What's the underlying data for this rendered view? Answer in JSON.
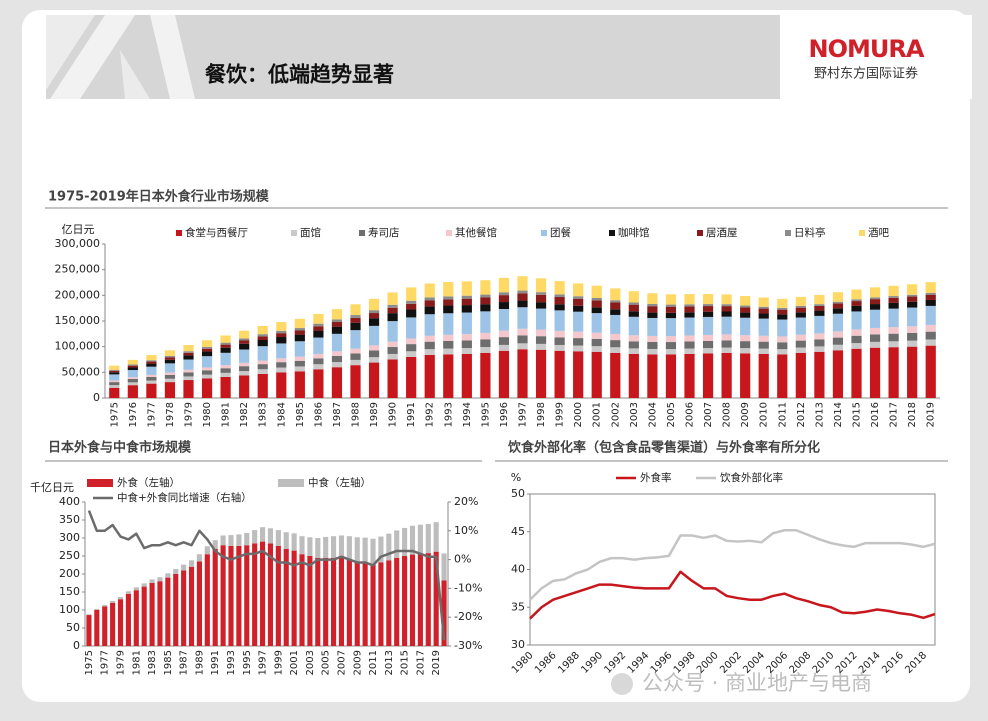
{
  "header": {
    "title": "餐饮：低端趋势显著",
    "logo": "NOMURA",
    "logo_sub": "野村东方国际证券"
  },
  "watermark": "公众号 · 商业地产与电商",
  "chart_data": [
    {
      "type": "bar",
      "stacked": true,
      "title": "1975-2019年日本外食行业市场规模",
      "y_label": "亿日元",
      "categories": [
        "1975",
        "1976",
        "1977",
        "1978",
        "1979",
        "1980",
        "1981",
        "1982",
        "1983",
        "1984",
        "1985",
        "1986",
        "1987",
        "1988",
        "1989",
        "1990",
        "1991",
        "1992",
        "1993",
        "1994",
        "1995",
        "1996",
        "1997",
        "1998",
        "1999",
        "2000",
        "2001",
        "2002",
        "2003",
        "2004",
        "2005",
        "2006",
        "2007",
        "2008",
        "2009",
        "2010",
        "2011",
        "2012",
        "2013",
        "2014",
        "2015",
        "2016",
        "2017",
        "2018",
        "2019"
      ],
      "ylim": [
        0,
        300000
      ],
      "yticks": [
        0,
        {
          "value": 50000,
          "label": "50,000"
        },
        {
          "value": 100000,
          "label": "100,000"
        },
        {
          "value": 150000,
          "label": "150,000"
        },
        {
          "value": 200000,
          "label": "200,000"
        },
        {
          "value": 250000,
          "label": "250,000"
        },
        {
          "value": 300000,
          "label": "300,000"
        }
      ],
      "series": [
        {
          "name": "食堂与西餐厅",
          "color": "#c8161d",
          "values": [
            20000,
            25000,
            28000,
            31000,
            35000,
            38000,
            41000,
            44000,
            47000,
            50000,
            52000,
            56000,
            60000,
            64000,
            69000,
            75000,
            80000,
            84000,
            85000,
            86000,
            88000,
            92000,
            95000,
            94000,
            92000,
            91000,
            90000,
            88000,
            86000,
            85000,
            85000,
            86000,
            87000,
            88000,
            87000,
            86000,
            85000,
            88000,
            90000,
            93000,
            96000,
            98000,
            99000,
            100000,
            102000
          ]
        },
        {
          "name": "面馆",
          "color": "#c9c9c9",
          "values": [
            5000,
            5500,
            6000,
            6500,
            7000,
            7500,
            8000,
            8500,
            9000,
            9300,
            9500,
            9800,
            10000,
            10200,
            10500,
            10800,
            11000,
            11200,
            11300,
            11300,
            11300,
            11400,
            11500,
            11400,
            11300,
            11200,
            11000,
            10800,
            10600,
            10500,
            10400,
            10400,
            10300,
            10300,
            10200,
            10200,
            10100,
            10300,
            10500,
            10700,
            11000,
            11300,
            11500,
            11700,
            12000
          ]
        },
        {
          "name": "寿司店",
          "color": "#6d6d6d",
          "values": [
            6000,
            6500,
            7000,
            7500,
            8000,
            8500,
            9000,
            9500,
            10000,
            10500,
            11000,
            11500,
            12000,
            12500,
            13000,
            13500,
            14000,
            14500,
            14800,
            15000,
            15000,
            15200,
            15300,
            15000,
            14800,
            14500,
            14200,
            14000,
            13800,
            13700,
            13600,
            13700,
            13800,
            13800,
            13600,
            13500,
            13400,
            13500,
            13700,
            14000,
            14300,
            14600,
            14800,
            15000,
            15200
          ]
        },
        {
          "name": "其他餐馆",
          "color": "#f4c7cc",
          "values": [
            3000,
            3500,
            4000,
            4500,
            5000,
            5500,
            6000,
            6500,
            7000,
            7500,
            8000,
            8500,
            9000,
            9500,
            10000,
            10500,
            11000,
            11500,
            12000,
            12200,
            12500,
            12800,
            13000,
            12800,
            12600,
            12400,
            12200,
            12000,
            11800,
            11700,
            11600,
            11700,
            11800,
            11800,
            11600,
            11500,
            11400,
            11500,
            11700,
            12000,
            12300,
            12600,
            12800,
            13000,
            13200
          ]
        },
        {
          "name": "团餐",
          "color": "#9dc3e6",
          "values": [
            12000,
            14000,
            16000,
            18000,
            20000,
            22000,
            24000,
            26000,
            28000,
            29000,
            30000,
            32000,
            34000,
            36000,
            38000,
            40000,
            41000,
            42000,
            42000,
            42000,
            42000,
            42000,
            42000,
            41000,
            40000,
            39000,
            38000,
            37000,
            36000,
            35000,
            35000,
            35000,
            35000,
            34500,
            34000,
            33500,
            33000,
            33500,
            34000,
            34500,
            35000,
            35500,
            36000,
            36500,
            37000
          ]
        },
        {
          "name": "咖啡馆",
          "color": "#111111",
          "values": [
            4000,
            5000,
            6000,
            7000,
            8000,
            9000,
            10000,
            11000,
            12000,
            12500,
            13000,
            13500,
            14000,
            14500,
            15000,
            15500,
            15500,
            15300,
            15000,
            14500,
            14000,
            13500,
            13000,
            12500,
            12000,
            11500,
            11200,
            11000,
            10800,
            10500,
            10300,
            10200,
            10200,
            10100,
            10000,
            10000,
            10000,
            10200,
            10400,
            10600,
            10800,
            11000,
            11200,
            11400,
            11600
          ]
        },
        {
          "name": "居酒屋",
          "color": "#8b1a1a",
          "values": [
            3000,
            3500,
            4000,
            4500,
            5000,
            5500,
            6000,
            6500,
            7000,
            7500,
            8000,
            8500,
            9000,
            9500,
            10000,
            10500,
            11000,
            11500,
            12000,
            12500,
            13000,
            13500,
            14000,
            14200,
            14000,
            13800,
            13500,
            13200,
            12800,
            12500,
            12000,
            11500,
            11000,
            10500,
            10000,
            9500,
            9200,
            9000,
            9000,
            9200,
            9400,
            9600,
            9800,
            10000,
            10200
          ]
        },
        {
          "name": "日料亭",
          "color": "#8c8c8c",
          "values": [
            2000,
            2300,
            2600,
            2900,
            3200,
            3500,
            3800,
            4100,
            4400,
            4600,
            4800,
            5000,
            5200,
            5400,
            5600,
            5800,
            6000,
            6000,
            5900,
            5800,
            5700,
            5600,
            5500,
            5300,
            5100,
            4900,
            4700,
            4500,
            4300,
            4200,
            4100,
            4000,
            3900,
            3800,
            3700,
            3600,
            3500,
            3500,
            3500,
            3500,
            3500,
            3500,
            3500,
            3500,
            3500
          ]
        },
        {
          "name": "酒吧",
          "color": "#ffd966",
          "values": [
            8000,
            9000,
            10000,
            11000,
            12000,
            13000,
            14000,
            15000,
            16000,
            17000,
            18000,
            19000,
            20000,
            21000,
            22000,
            24000,
            26000,
            27000,
            28000,
            28000,
            28000,
            28000,
            28000,
            27000,
            26000,
            25000,
            24000,
            23000,
            22000,
            21000,
            20000,
            20000,
            19500,
            19000,
            18500,
            18000,
            17500,
            17500,
            18000,
            18500,
            19000,
            19500,
            20000,
            20500,
            21000
          ]
        }
      ]
    },
    {
      "type": "bar",
      "stacked": true,
      "title": "日本外食与中食市场规模",
      "y_label": "千亿日元",
      "categories": [
        "1975",
        null,
        "1977",
        null,
        "1979",
        null,
        "1981",
        null,
        "1983",
        null,
        "1985",
        null,
        "1987",
        null,
        "1989",
        null,
        "1991",
        null,
        "1993",
        null,
        "1995",
        null,
        "1997",
        null,
        "1999",
        null,
        "2001",
        null,
        "2003",
        null,
        "2005",
        null,
        "2007",
        null,
        "2009",
        null,
        "2011",
        null,
        "2013",
        null,
        "2015",
        null,
        "2017",
        null,
        "2019",
        null
      ],
      "ylim": [
        0,
        400
      ],
      "yticks": [
        0,
        50,
        100,
        150,
        200,
        250,
        300,
        350,
        400
      ],
      "y2lim": [
        -30,
        20
      ],
      "y2ticks": [
        {
          "value": -30,
          "label": "-30%"
        },
        {
          "value": -20,
          "label": "-20%"
        },
        {
          "value": -10,
          "label": "-10%"
        },
        {
          "value": 0,
          "label": "0%"
        },
        {
          "value": 10,
          "label": "10%"
        },
        {
          "value": 20,
          "label": "20%"
        }
      ],
      "series": [
        {
          "name": "外食（左轴）",
          "color": "#d0202a",
          "values": [
            86,
            100,
            110,
            120,
            130,
            145,
            155,
            165,
            175,
            180,
            190,
            200,
            210,
            220,
            235,
            255,
            270,
            280,
            278,
            278,
            280,
            285,
            290,
            285,
            278,
            270,
            265,
            255,
            250,
            245,
            245,
            245,
            245,
            240,
            235,
            233,
            228,
            232,
            238,
            245,
            250,
            254,
            257,
            258,
            262,
            182
          ]
        },
        {
          "name": "中食（左轴）",
          "color": "#bdbdbd",
          "values": [
            2,
            3,
            4,
            5,
            6,
            7,
            8,
            9,
            10,
            11,
            12,
            14,
            16,
            18,
            20,
            22,
            24,
            27,
            30,
            32,
            34,
            37,
            40,
            42,
            44,
            46,
            48,
            50,
            52,
            55,
            58,
            60,
            62,
            65,
            67,
            68,
            70,
            72,
            74,
            76,
            78,
            80,
            80,
            81,
            82,
            75
          ]
        },
        {
          "name": "中食+外食同比增速（右轴）",
          "color": "#6b6b6b",
          "type": "line",
          "axis": "y2",
          "values": [
            17,
            10,
            10,
            12,
            8,
            7,
            9,
            4,
            5,
            5,
            6,
            5,
            6,
            5,
            10,
            7,
            3,
            1,
            0,
            1,
            2,
            2,
            3,
            1,
            -1,
            -1,
            -2,
            -1,
            -2,
            0,
            0,
            0,
            1,
            0,
            -1,
            -1,
            -2,
            1,
            2,
            3,
            3,
            3,
            2,
            1,
            1,
            -28
          ]
        }
      ]
    },
    {
      "type": "line",
      "title": "饮食外部化率（包含食品零售渠道）与外食率有所分化",
      "y_label": "%",
      "frame": true,
      "categories": [
        "1980",
        null,
        "1986",
        null,
        "1988",
        null,
        "1990",
        null,
        "1992",
        null,
        "1994",
        null,
        "1996",
        null,
        "1998",
        null,
        "2000",
        null,
        "2002",
        null,
        "2004",
        null,
        "2006",
        null,
        "2008",
        null,
        "2010",
        null,
        "2012",
        null,
        "2014",
        null,
        "2016",
        null,
        "2018",
        null
      ],
      "ylim": [
        30,
        50
      ],
      "yticks": [
        30,
        35,
        40,
        45,
        50
      ],
      "series": [
        {
          "name": "外食率",
          "color": "#c8161d",
          "values": [
            33.5,
            35,
            36,
            36.5,
            37,
            37.5,
            38,
            38,
            37.8,
            37.6,
            37.5,
            37.5,
            37.5,
            39.7,
            38.5,
            37.5,
            37.5,
            36.5,
            36.2,
            36,
            36,
            36.5,
            36.8,
            36.2,
            35.8,
            35.3,
            35,
            34.3,
            34.2,
            34.4,
            34.7,
            34.5,
            34.2,
            34,
            33.6,
            34.1
          ]
        },
        {
          "name": "饮食外部化率",
          "color": "#c4c4c4",
          "values": [
            36,
            37.5,
            38.5,
            38.7,
            39.5,
            40,
            41,
            41.5,
            41.5,
            41.3,
            41.5,
            41.6,
            41.8,
            44.5,
            44.5,
            44.2,
            44.5,
            43.8,
            43.7,
            43.8,
            43.6,
            44.8,
            45.2,
            45.2,
            44.6,
            44,
            43.5,
            43.2,
            43,
            43.5,
            43.5,
            43.5,
            43.5,
            43.3,
            43,
            43.4
          ]
        }
      ]
    }
  ]
}
